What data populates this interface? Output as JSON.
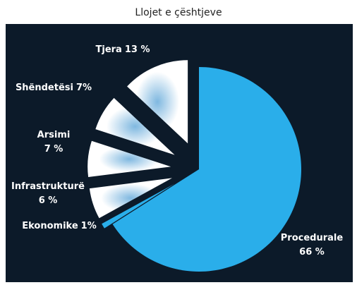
{
  "chart_data": {
    "type": "pie",
    "title": "Llojet e çështjeve",
    "categories": [
      "Procedurale",
      "Ekonomike",
      "Infrastrukturë",
      "Arsimi",
      "Shëndetësi",
      "Tjera"
    ],
    "values": [
      66,
      1,
      6,
      7,
      7,
      13
    ],
    "value_labels": [
      "66 %",
      "1%",
      "6 %",
      "7 %",
      "7%",
      "13 %"
    ],
    "colors": [
      "#2aaeea",
      "#2aaeea",
      "#ffffff",
      "#ffffff",
      "#ffffff",
      "#ffffff"
    ]
  }
}
